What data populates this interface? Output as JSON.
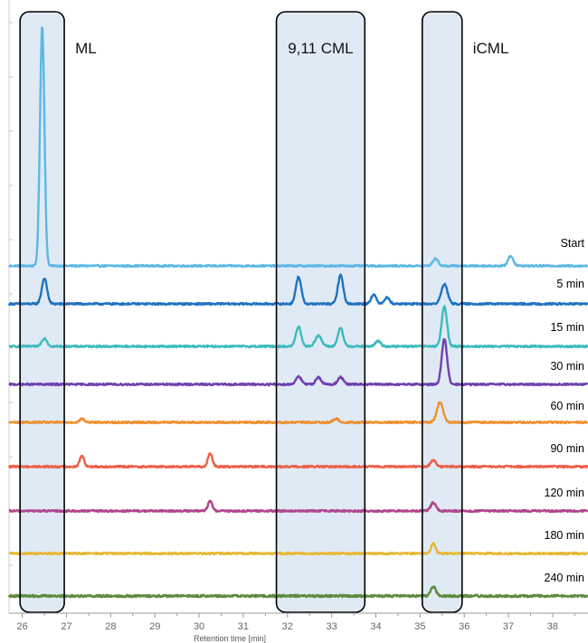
{
  "chart_data": {
    "type": "line",
    "title": "",
    "xlabel": "Retention time [min]",
    "ylabel": "",
    "xlim": [
      25.7,
      38.8
    ],
    "x_ticks": [
      26,
      27,
      28,
      29,
      30,
      31,
      32,
      33,
      34,
      35,
      36,
      37,
      38
    ],
    "x_tick_labels": [
      "26",
      "27",
      "28",
      "29",
      "30",
      "31",
      "32",
      "33",
      "34",
      "35",
      "36",
      "37",
      "38"
    ],
    "grid": false,
    "legend": "none",
    "stacking": "traces vertically offset, Start at top and 240 min at bottom",
    "regions": [
      {
        "label": "ML",
        "x_range": [
          25.95,
          26.95
        ],
        "color": "#dbe6f3"
      },
      {
        "label": "9,11 CML",
        "x_range": [
          31.75,
          33.75
        ],
        "color": "#dbe6f3"
      },
      {
        "label": "iCML",
        "x_range": [
          35.05,
          35.95
        ],
        "color": "#dbe6f3"
      }
    ],
    "series": [
      {
        "name": "Start",
        "color": "#5bb8e6",
        "noise": 0.9,
        "peaks": [
          [
            26.45,
            265,
            0.05
          ],
          [
            35.35,
            8,
            0.06
          ],
          [
            37.05,
            11,
            0.06
          ]
        ]
      },
      {
        "name": "5 min",
        "color": "#1f73c2",
        "noise": 1.0,
        "peaks": [
          [
            26.5,
            28,
            0.06
          ],
          [
            32.25,
            30,
            0.06
          ],
          [
            33.2,
            32,
            0.06
          ],
          [
            33.95,
            10,
            0.06
          ],
          [
            34.25,
            7,
            0.06
          ],
          [
            35.55,
            22,
            0.07
          ]
        ]
      },
      {
        "name": "15 min",
        "color": "#3cbcbc",
        "noise": 1.0,
        "peaks": [
          [
            26.5,
            9,
            0.06
          ],
          [
            32.25,
            22,
            0.06
          ],
          [
            32.7,
            12,
            0.07
          ],
          [
            33.2,
            20,
            0.06
          ],
          [
            34.05,
            6,
            0.06
          ],
          [
            35.55,
            44,
            0.06
          ]
        ]
      },
      {
        "name": "30 min",
        "color": "#7040b0",
        "noise": 1.0,
        "peaks": [
          [
            32.25,
            9,
            0.06
          ],
          [
            32.7,
            8,
            0.06
          ],
          [
            33.2,
            8,
            0.06
          ],
          [
            35.55,
            50,
            0.06
          ]
        ]
      },
      {
        "name": "60 min",
        "color": "#f08f2e",
        "noise": 1.0,
        "peaks": [
          [
            27.35,
            4,
            0.05
          ],
          [
            33.1,
            4,
            0.06
          ],
          [
            35.45,
            22,
            0.07
          ]
        ]
      },
      {
        "name": "90 min",
        "color": "#ee5e48",
        "noise": 1.0,
        "peaks": [
          [
            27.35,
            12,
            0.05
          ],
          [
            30.25,
            15,
            0.05
          ],
          [
            35.3,
            7,
            0.06
          ]
        ]
      },
      {
        "name": "120 min",
        "color": "#b0468c",
        "noise": 1.0,
        "peaks": [
          [
            30.25,
            11,
            0.05
          ],
          [
            35.3,
            9,
            0.06
          ]
        ]
      },
      {
        "name": "180 min",
        "color": "#e6b832",
        "noise": 1.0,
        "peaks": [
          [
            35.3,
            11,
            0.05
          ]
        ]
      },
      {
        "name": "240 min",
        "color": "#5d8b3c",
        "noise": 1.2,
        "peaks": [
          [
            35.3,
            10,
            0.06
          ]
        ]
      }
    ]
  }
}
